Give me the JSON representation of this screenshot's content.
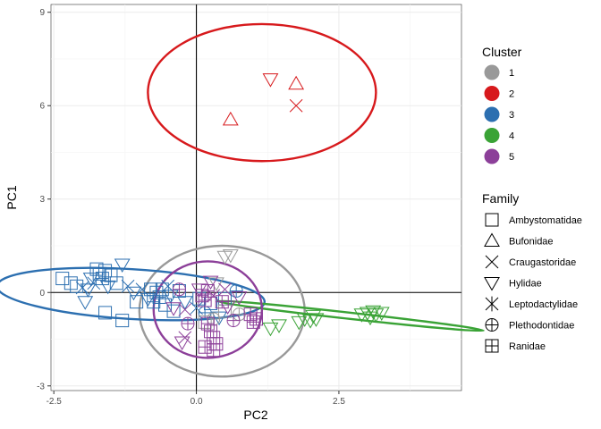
{
  "chart_data": {
    "type": "scatter",
    "title": "",
    "xlabel": "PC2",
    "ylabel": "PC1",
    "xlim": [
      -2.55,
      4.65
    ],
    "ylim": [
      -3.15,
      9.25
    ],
    "xticks": [
      -2.5,
      0.0,
      2.5
    ],
    "yticks": [
      -3,
      0,
      3,
      6,
      9
    ],
    "xtick_labels": [
      "-2.5",
      "0.0",
      "2.5"
    ],
    "ytick_labels": [
      "-3",
      "0",
      "3",
      "6",
      "9"
    ],
    "grid": true,
    "reference_lines": {
      "x": 0,
      "y": 0
    },
    "legend_placement": "right",
    "clusters": [
      {
        "name": "1",
        "color": "#999999"
      },
      {
        "name": "2",
        "color": "#d7191c"
      },
      {
        "name": "3",
        "color": "#2c6fb0"
      },
      {
        "name": "4",
        "color": "#3aa336"
      },
      {
        "name": "5",
        "color": "#8c3f99"
      }
    ],
    "families": [
      {
        "name": "Ambystomatidae",
        "shape": "square"
      },
      {
        "name": "Bufonidae",
        "shape": "triangle-up"
      },
      {
        "name": "Craugastoridae",
        "shape": "x"
      },
      {
        "name": "Hylidae",
        "shape": "triangle-down"
      },
      {
        "name": "Leptodactylidae",
        "shape": "asterisk"
      },
      {
        "name": "Plethodontidae",
        "shape": "circle-plus"
      },
      {
        "name": "Ranidae",
        "shape": "square-plus"
      }
    ],
    "ellipses": [
      {
        "cluster": "1",
        "cx": 0.45,
        "cy": -0.6,
        "rx": 1.45,
        "ry": 2.1,
        "angle": 0
      },
      {
        "cluster": "2",
        "cx": 1.15,
        "cy": 6.42,
        "rx": 2.0,
        "ry": 2.2,
        "angle": 0
      },
      {
        "cluster": "3",
        "cx": -1.15,
        "cy": -0.05,
        "rx": 2.35,
        "ry": 0.8,
        "angle": -0.06
      },
      {
        "cluster": "4",
        "cx": 2.7,
        "cy": -0.75,
        "rx": 2.35,
        "ry": 0.1,
        "angle": -0.11
      },
      {
        "cluster": "5",
        "cx": 0.2,
        "cy": -0.55,
        "rx": 0.95,
        "ry": 1.55,
        "angle": 0
      }
    ],
    "points": [
      {
        "x": 0.6,
        "y": 5.55,
        "cluster": "2",
        "family": "Bufonidae"
      },
      {
        "x": 1.3,
        "y": 6.85,
        "cluster": "2",
        "family": "Hylidae"
      },
      {
        "x": 1.75,
        "y": 6.7,
        "cluster": "2",
        "family": "Bufonidae"
      },
      {
        "x": 1.75,
        "y": 6.0,
        "cluster": "2",
        "family": "Craugastoridae"
      },
      {
        "x": -2.35,
        "y": 0.45,
        "cluster": "3",
        "family": "Ambystomatidae"
      },
      {
        "x": -2.2,
        "y": 0.3,
        "cluster": "3",
        "family": "Ambystomatidae"
      },
      {
        "x": -2.1,
        "y": 0.2,
        "cluster": "3",
        "family": "Ambystomatidae"
      },
      {
        "x": -2.0,
        "y": 0.15,
        "cluster": "3",
        "family": "Craugastoridae"
      },
      {
        "x": -1.95,
        "y": -0.3,
        "cluster": "3",
        "family": "Hylidae"
      },
      {
        "x": -1.9,
        "y": 0.1,
        "cluster": "3",
        "family": "Hylidae"
      },
      {
        "x": -1.85,
        "y": 0.45,
        "cluster": "3",
        "family": "Hylidae"
      },
      {
        "x": -1.8,
        "y": 0.3,
        "cluster": "3",
        "family": "Craugastoridae"
      },
      {
        "x": -1.75,
        "y": 0.75,
        "cluster": "3",
        "family": "Ambystomatidae"
      },
      {
        "x": -1.7,
        "y": 0.6,
        "cluster": "3",
        "family": "Ambystomatidae"
      },
      {
        "x": -1.65,
        "y": 0.45,
        "cluster": "3",
        "family": "Ranidae"
      },
      {
        "x": -1.6,
        "y": 0.7,
        "cluster": "3",
        "family": "Ambystomatidae"
      },
      {
        "x": -1.55,
        "y": 0.2,
        "cluster": "3",
        "family": "Hylidae"
      },
      {
        "x": -1.5,
        "y": 0.55,
        "cluster": "3",
        "family": "Ambystomatidae"
      },
      {
        "x": -1.4,
        "y": 0.3,
        "cluster": "3",
        "family": "Ambystomatidae"
      },
      {
        "x": -1.3,
        "y": 0.9,
        "cluster": "3",
        "family": "Hylidae"
      },
      {
        "x": -1.2,
        "y": 0.2,
        "cluster": "3",
        "family": "Craugastoridae"
      },
      {
        "x": -1.1,
        "y": 0.0,
        "cluster": "3",
        "family": "Hylidae"
      },
      {
        "x": -1.6,
        "y": -0.65,
        "cluster": "3",
        "family": "Ambystomatidae"
      },
      {
        "x": -1.3,
        "y": -0.9,
        "cluster": "3",
        "family": "Ambystomatidae"
      },
      {
        "x": -1.05,
        "y": -0.3,
        "cluster": "3",
        "family": "Ambystomatidae"
      },
      {
        "x": -0.95,
        "y": 0.1,
        "cluster": "3",
        "family": "Craugastoridae"
      },
      {
        "x": -0.85,
        "y": -0.2,
        "cluster": "3",
        "family": "Hylidae"
      },
      {
        "x": -0.8,
        "y": 0.1,
        "cluster": "3",
        "family": "Ambystomatidae"
      },
      {
        "x": -0.75,
        "y": -0.3,
        "cluster": "3",
        "family": "Ranidae"
      },
      {
        "x": -0.7,
        "y": 0.0,
        "cluster": "3",
        "family": "Ambystomatidae"
      },
      {
        "x": -0.65,
        "y": -0.15,
        "cluster": "3",
        "family": "Ranidae"
      },
      {
        "x": -0.6,
        "y": 0.1,
        "cluster": "3",
        "family": "Ambystomatidae"
      },
      {
        "x": -0.55,
        "y": -0.4,
        "cluster": "3",
        "family": "Ambystomatidae"
      },
      {
        "x": -0.5,
        "y": 0.2,
        "cluster": "3",
        "family": "Craugastoridae"
      },
      {
        "x": -0.45,
        "y": -0.1,
        "cluster": "3",
        "family": "Hylidae"
      },
      {
        "x": -0.4,
        "y": -0.6,
        "cluster": "3",
        "family": "Ambystomatidae"
      },
      {
        "x": -0.3,
        "y": 0.05,
        "cluster": "3",
        "family": "Ambystomatidae"
      },
      {
        "x": -0.2,
        "y": -0.3,
        "cluster": "3",
        "family": "Hylidae"
      },
      {
        "x": 0.0,
        "y": -0.5,
        "cluster": "3",
        "family": "Craugastoridae"
      },
      {
        "x": 0.05,
        "y": -0.2,
        "cluster": "3",
        "family": "Ambystomatidae"
      },
      {
        "x": 0.15,
        "y": -0.65,
        "cluster": "3",
        "family": "Plethodontidae"
      },
      {
        "x": 0.25,
        "y": -0.35,
        "cluster": "3",
        "family": "Ambystomatidae"
      },
      {
        "x": 0.4,
        "y": -0.8,
        "cluster": "3",
        "family": "Hylidae"
      },
      {
        "x": 0.5,
        "y": -0.2,
        "cluster": "3",
        "family": "Ambystomatidae"
      },
      {
        "x": 0.7,
        "y": 0.05,
        "cluster": "3",
        "family": "Plethodontidae"
      },
      {
        "x": 0.5,
        "y": 1.15,
        "cluster": "1",
        "family": "Hylidae"
      },
      {
        "x": 0.6,
        "y": 1.2,
        "cluster": "1",
        "family": "Hylidae"
      },
      {
        "x": 0.35,
        "y": 0.3,
        "cluster": "1",
        "family": "Hylidae"
      },
      {
        "x": 0.5,
        "y": -0.6,
        "cluster": "1",
        "family": "Ambystomatidae"
      },
      {
        "x": 0.3,
        "y": -0.85,
        "cluster": "1",
        "family": "Plethodontidae"
      },
      {
        "x": 0.75,
        "y": -0.7,
        "cluster": "1",
        "family": "Plethodontidae"
      },
      {
        "x": 0.15,
        "y": -0.95,
        "cluster": "1",
        "family": "Ambystomatidae"
      },
      {
        "x": -0.4,
        "y": -0.5,
        "cluster": "5",
        "family": "Hylidae"
      },
      {
        "x": -0.3,
        "y": 0.1,
        "cluster": "5",
        "family": "Plethodontidae"
      },
      {
        "x": -0.2,
        "y": -0.55,
        "cluster": "5",
        "family": "Craugastoridae"
      },
      {
        "x": -0.15,
        "y": -1.0,
        "cluster": "5",
        "family": "Plethodontidae"
      },
      {
        "x": -0.2,
        "y": -1.45,
        "cluster": "5",
        "family": "Craugastoridae"
      },
      {
        "x": -0.25,
        "y": -1.6,
        "cluster": "5",
        "family": "Hylidae"
      },
      {
        "x": 0.05,
        "y": 0.1,
        "cluster": "5",
        "family": "Hylidae"
      },
      {
        "x": 0.1,
        "y": -0.1,
        "cluster": "5",
        "family": "Ranidae"
      },
      {
        "x": 0.15,
        "y": -0.25,
        "cluster": "5",
        "family": "Ranidae"
      },
      {
        "x": 0.2,
        "y": 0.05,
        "cluster": "5",
        "family": "Ranidae"
      },
      {
        "x": 0.25,
        "y": 0.35,
        "cluster": "5",
        "family": "Hylidae"
      },
      {
        "x": 0.3,
        "y": -0.1,
        "cluster": "5",
        "family": "Craugastoridae"
      },
      {
        "x": 0.2,
        "y": -1.0,
        "cluster": "5",
        "family": "Ranidae"
      },
      {
        "x": 0.25,
        "y": -1.25,
        "cluster": "5",
        "family": "Ranidae"
      },
      {
        "x": 0.3,
        "y": -1.45,
        "cluster": "5",
        "family": "Ranidae"
      },
      {
        "x": 0.35,
        "y": -1.65,
        "cluster": "5",
        "family": "Ranidae"
      },
      {
        "x": 0.15,
        "y": -1.75,
        "cluster": "5",
        "family": "Ranidae"
      },
      {
        "x": 0.3,
        "y": -1.85,
        "cluster": "5",
        "family": "Ranidae"
      },
      {
        "x": 0.45,
        "y": -0.3,
        "cluster": "5",
        "family": "Ranidae"
      },
      {
        "x": 0.5,
        "y": 0.1,
        "cluster": "5",
        "family": "Craugastoridae"
      },
      {
        "x": 0.55,
        "y": -0.45,
        "cluster": "5",
        "family": "Hylidae"
      },
      {
        "x": 0.65,
        "y": -0.9,
        "cluster": "5",
        "family": "Plethodontidae"
      },
      {
        "x": 0.75,
        "y": -0.15,
        "cluster": "5",
        "family": "Hylidae"
      },
      {
        "x": 0.95,
        "y": -0.7,
        "cluster": "5",
        "family": "Ranidae"
      },
      {
        "x": 1.0,
        "y": -0.95,
        "cluster": "5",
        "family": "Ranidae"
      },
      {
        "x": 1.05,
        "y": -0.85,
        "cluster": "5",
        "family": "Ranidae"
      },
      {
        "x": 1.3,
        "y": -1.15,
        "cluster": "4",
        "family": "Hylidae"
      },
      {
        "x": 1.45,
        "y": -1.05,
        "cluster": "4",
        "family": "Hylidae"
      },
      {
        "x": 1.8,
        "y": -0.95,
        "cluster": "4",
        "family": "Hylidae"
      },
      {
        "x": 1.9,
        "y": -0.85,
        "cluster": "4",
        "family": "Hylidae"
      },
      {
        "x": 2.0,
        "y": -0.9,
        "cluster": "4",
        "family": "Hylidae"
      },
      {
        "x": 2.1,
        "y": -0.85,
        "cluster": "4",
        "family": "Hylidae"
      },
      {
        "x": 2.05,
        "y": -0.75,
        "cluster": "4",
        "family": "Hylidae"
      },
      {
        "x": 2.9,
        "y": -0.7,
        "cluster": "4",
        "family": "Hylidae"
      },
      {
        "x": 3.0,
        "y": -0.65,
        "cluster": "4",
        "family": "Hylidae"
      },
      {
        "x": 3.05,
        "y": -0.8,
        "cluster": "4",
        "family": "Hylidae"
      },
      {
        "x": 3.1,
        "y": -0.6,
        "cluster": "4",
        "family": "Hylidae"
      },
      {
        "x": 3.15,
        "y": -0.7,
        "cluster": "4",
        "family": "Hylidae"
      },
      {
        "x": 3.25,
        "y": -0.65,
        "cluster": "4",
        "family": "Hylidae"
      }
    ]
  }
}
